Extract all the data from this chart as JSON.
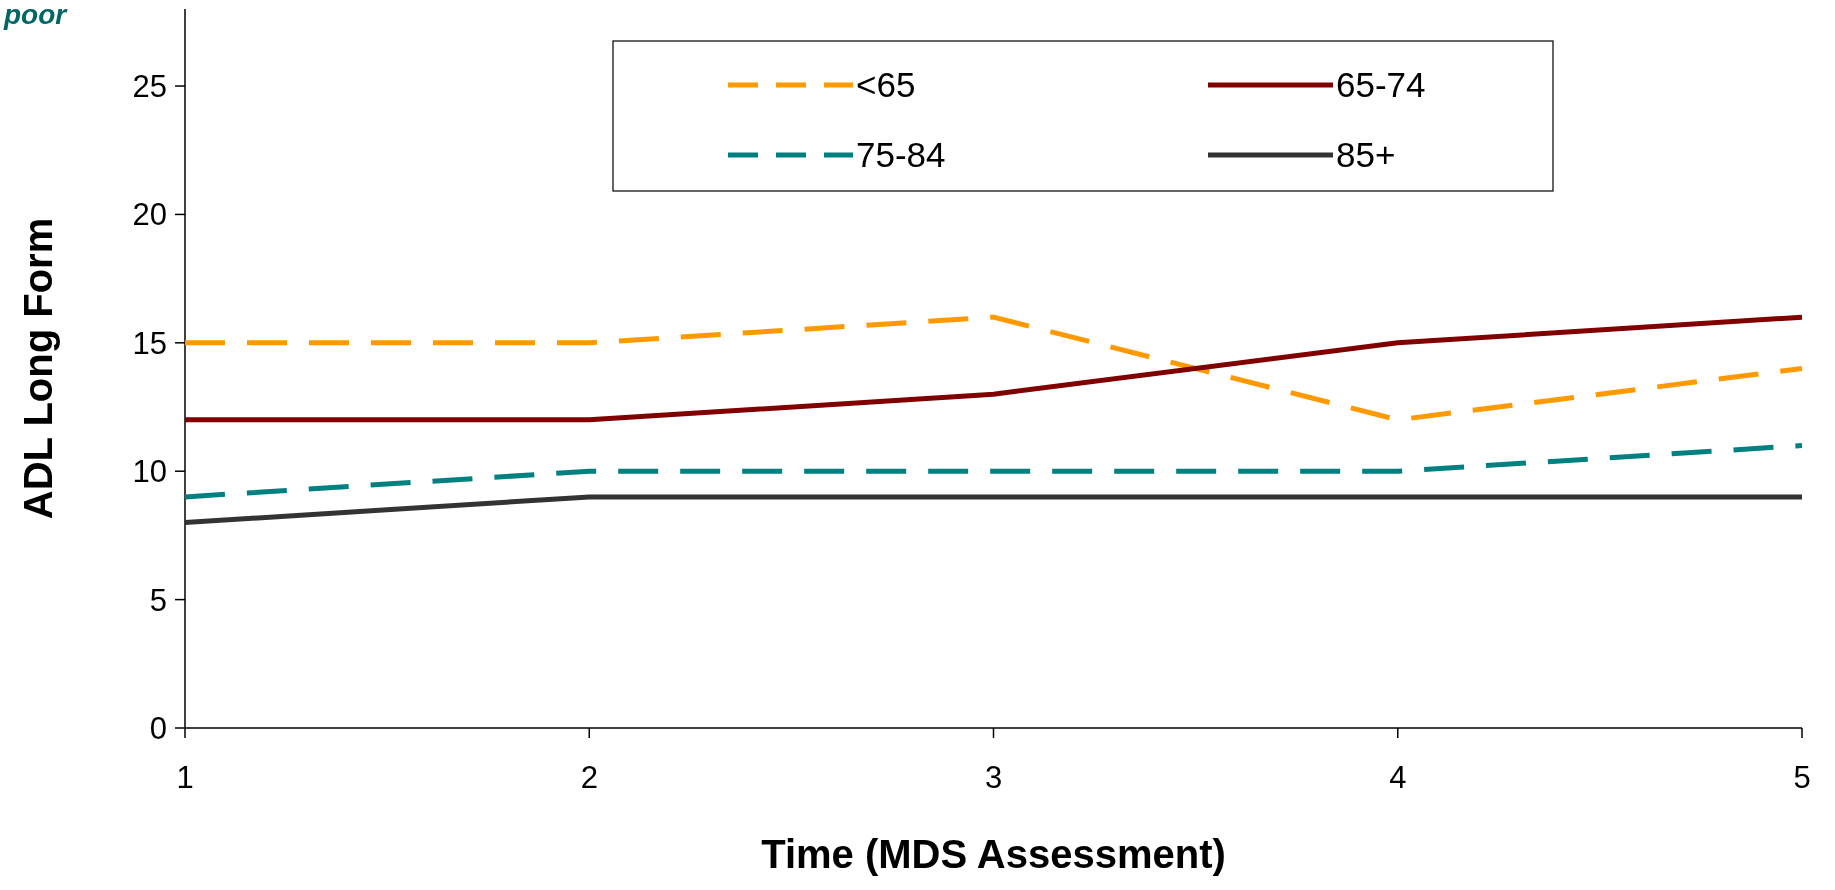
{
  "chart_data": {
    "type": "line",
    "xlabel": "Time (MDS Assessment)",
    "ylabel": "ADL Long Form",
    "annotations": [
      "poor"
    ],
    "x": [
      1,
      2,
      3,
      4,
      5
    ],
    "xlim": [
      1,
      5
    ],
    "xticks": [
      1,
      2,
      3,
      4,
      5
    ],
    "ylim": [
      0,
      28
    ],
    "yticks": [
      0,
      5,
      10,
      15,
      20,
      25
    ],
    "grid": false,
    "legend": "top",
    "marker": "none",
    "series": [
      {
        "name": "<65",
        "color": "#ff9900",
        "line_style": "dashed",
        "values": [
          15,
          15,
          16,
          12,
          14
        ]
      },
      {
        "name": "65-74",
        "color": "#800000",
        "line_style": "solid",
        "values": [
          12,
          12,
          13,
          15,
          16
        ]
      },
      {
        "name": "75-84",
        "color": "#008080",
        "line_style": "dashed",
        "values": [
          9,
          10,
          10,
          10,
          11
        ]
      },
      {
        "name": "85+",
        "color": "#333333",
        "line_style": "solid",
        "values": [
          8,
          9,
          9,
          9,
          9
        ]
      }
    ]
  }
}
